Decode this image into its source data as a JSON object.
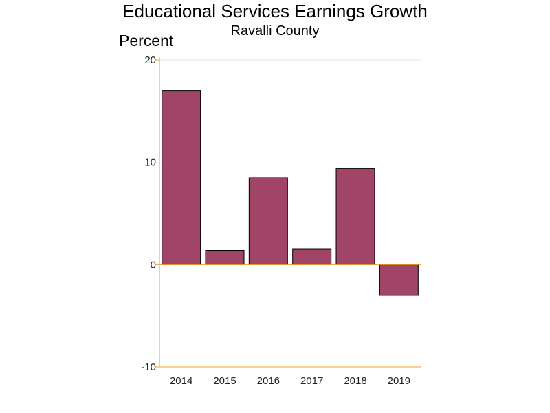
{
  "chart_data": {
    "type": "bar",
    "title": "Educational Services Earnings Growth",
    "subtitle": "Ravalli County",
    "ylabel": "Percent",
    "xlabel": "",
    "categories": [
      "2014",
      "2015",
      "2016",
      "2017",
      "2018",
      "2019"
    ],
    "values": [
      17.0,
      1.4,
      8.5,
      1.5,
      9.4,
      -3.0
    ],
    "ylim": [
      -10,
      20
    ],
    "yticks": [
      "-10",
      "0",
      "10",
      "20"
    ],
    "grid": true,
    "legend": "none"
  },
  "colors": {
    "bar_fill": "#a04468",
    "bar_stroke": "#000000",
    "axis": "#f0a020",
    "grid": "#e4e4e4"
  }
}
